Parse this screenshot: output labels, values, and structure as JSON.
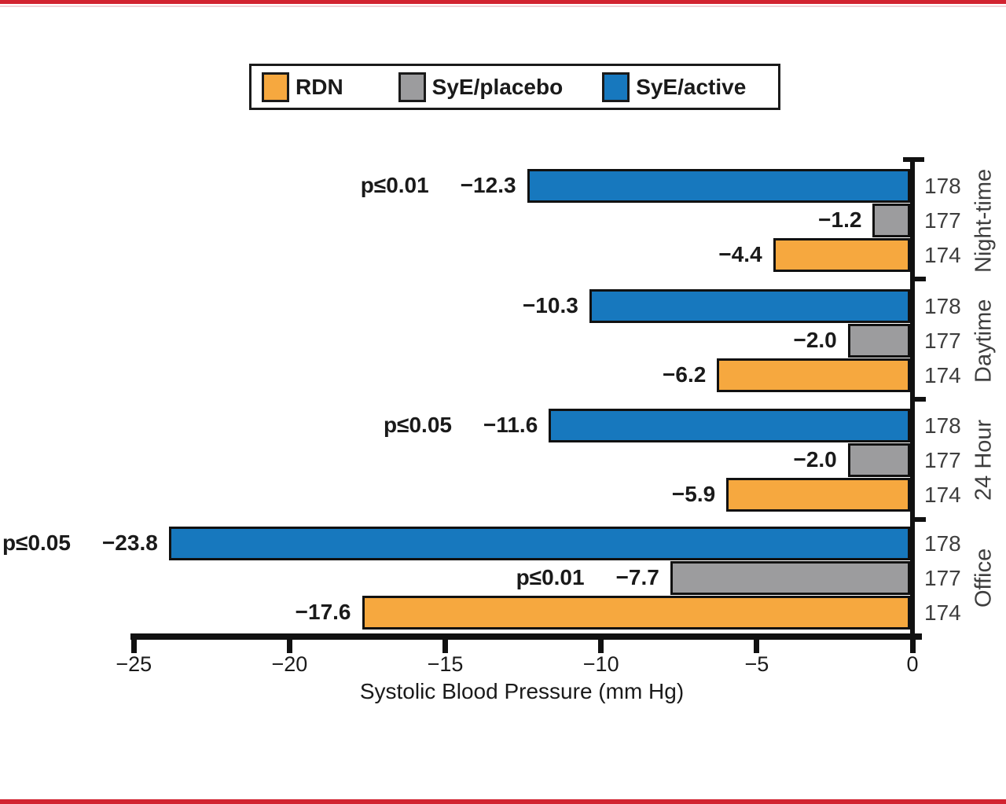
{
  "page": {
    "accent_red": "#D22330"
  },
  "chart_data": {
    "type": "bar",
    "orientation": "horizontal",
    "title": "",
    "xlabel": "Systolic Blood Pressure (mm Hg)",
    "ylabel": "",
    "xlim": [
      -25,
      0
    ],
    "grid": false,
    "legend_position": "top",
    "xticks": [
      -25,
      -20,
      -15,
      -10,
      -5,
      0
    ],
    "xtick_labels": [
      "−25",
      "−20",
      "−15",
      "−10",
      "−5",
      "0"
    ],
    "legend": [
      {
        "name": "RDN",
        "color": "#F6A83F"
      },
      {
        "name": "SyE/placebo",
        "color": "#9C9C9E"
      },
      {
        "name": "SyE/active",
        "color": "#1778BE"
      }
    ],
    "groups": [
      {
        "label": "Night-time",
        "bars": [
          {
            "series": "SyE/active",
            "value": -12.3,
            "value_label": "−12.3",
            "p_label": "p≤0.01",
            "n": "178"
          },
          {
            "series": "SyE/placebo",
            "value": -1.2,
            "value_label": "−1.2",
            "p_label": "",
            "n": "177"
          },
          {
            "series": "RDN",
            "value": -4.4,
            "value_label": "−4.4",
            "p_label": "",
            "n": "174"
          }
        ]
      },
      {
        "label": "Daytime",
        "bars": [
          {
            "series": "SyE/active",
            "value": -10.3,
            "value_label": "−10.3",
            "p_label": "",
            "n": "178"
          },
          {
            "series": "SyE/placebo",
            "value": -2.0,
            "value_label": "−2.0",
            "p_label": "",
            "n": "177"
          },
          {
            "series": "RDN",
            "value": -6.2,
            "value_label": "−6.2",
            "p_label": "",
            "n": "174"
          }
        ]
      },
      {
        "label": "24 Hour",
        "bars": [
          {
            "series": "SyE/active",
            "value": -11.6,
            "value_label": "−11.6",
            "p_label": "p≤0.05",
            "n": "178"
          },
          {
            "series": "SyE/placebo",
            "value": -2.0,
            "value_label": "−2.0",
            "p_label": "",
            "n": "177"
          },
          {
            "series": "RDN",
            "value": -5.9,
            "value_label": "−5.9",
            "p_label": "",
            "n": "174"
          }
        ]
      },
      {
        "label": "Office",
        "bars": [
          {
            "series": "SyE/active",
            "value": -23.8,
            "value_label": "−23.8",
            "p_label": "p≤0.05",
            "n": "178"
          },
          {
            "series": "SyE/placebo",
            "value": -7.7,
            "value_label": "−7.7",
            "p_label": "p≤0.01",
            "n": "177"
          },
          {
            "series": "RDN",
            "value": -17.6,
            "value_label": "−17.6",
            "p_label": "",
            "n": "174"
          }
        ]
      }
    ]
  }
}
